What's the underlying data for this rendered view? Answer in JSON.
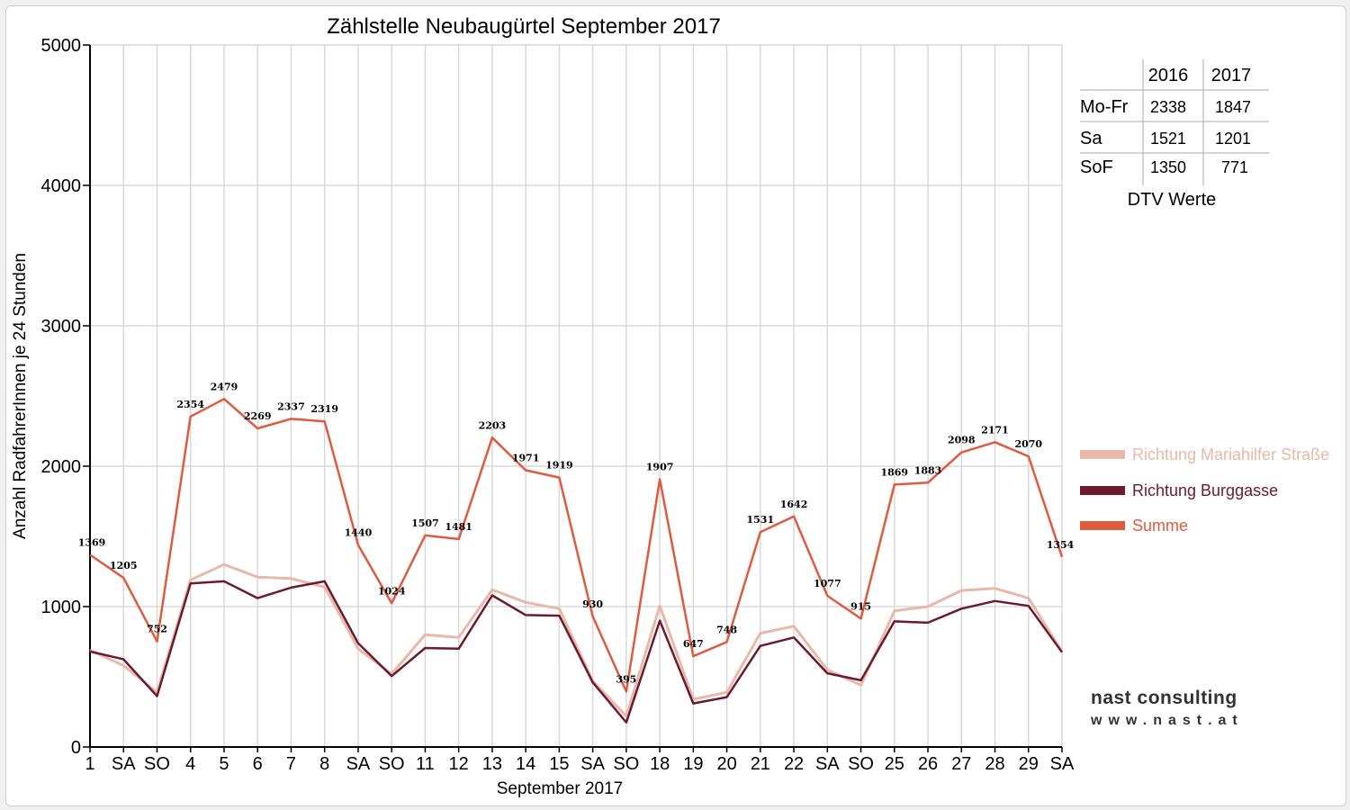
{
  "chart_data": {
    "type": "line",
    "title": "Zählstelle Neubaugürtel September 2017",
    "xlabel": "September 2017",
    "ylabel": "Anzahl RadfahrerInnen je 24 Stunden",
    "ylim": [
      0,
      5000
    ],
    "yticks": [
      "0",
      "1000",
      "2000",
      "3000",
      "4000",
      "5000"
    ],
    "grid": true,
    "legend_position": "right",
    "categories": [
      "1",
      "SA",
      "SO",
      "4",
      "5",
      "6",
      "7",
      "8",
      "SA",
      "SO",
      "11",
      "12",
      "13",
      "14",
      "15",
      "SA",
      "SO",
      "18",
      "19",
      "20",
      "21",
      "22",
      "SA",
      "SO",
      "25",
      "26",
      "27",
      "28",
      "29",
      "SA"
    ],
    "weekend_color": "#ff0000",
    "series": [
      {
        "name": "Richtung Mariahilfer Straße",
        "color": "#e8b8a8",
        "values": [
          690,
          580,
          390,
          1190,
          1300,
          1210,
          1200,
          1140,
          700,
          520,
          800,
          780,
          1120,
          1030,
          985,
          470,
          220,
          1005,
          340,
          390,
          810,
          860,
          550,
          440,
          970,
          1000,
          1115,
          1130,
          1060,
          680
        ]
      },
      {
        "name": "Richtung Burggasse",
        "color": "#6b1a30",
        "values": [
          680,
          625,
          362,
          1165,
          1180,
          1060,
          1135,
          1180,
          740,
          505,
          705,
          700,
          1080,
          940,
          935,
          460,
          175,
          900,
          310,
          355,
          720,
          780,
          525,
          475,
          895,
          885,
          985,
          1040,
          1005,
          675
        ]
      },
      {
        "name": "Summe",
        "color": "#e05a40",
        "values": [
          1369,
          1205,
          752,
          2354,
          2479,
          2269,
          2337,
          2319,
          1440,
          1024,
          1507,
          1481,
          2203,
          1971,
          1919,
          930,
          395,
          1907,
          647,
          748,
          1531,
          1642,
          1077,
          915,
          1869,
          1883,
          2098,
          2171,
          2070,
          1354
        ]
      }
    ],
    "data_labels": [
      "1369",
      "1205",
      "752",
      "2354",
      "2479",
      "2269",
      "2337",
      "2319",
      "1440",
      "1024",
      "1507",
      "1481",
      "2203",
      "1971",
      "1919",
      "930",
      "395",
      "1907",
      "647",
      "748",
      "1531",
      "1642",
      "1077",
      "915",
      "1869",
      "1883",
      "2098",
      "2171",
      "2070",
      "1354"
    ]
  },
  "dtv_table": {
    "caption": "DTV Werte",
    "years": [
      "2016",
      "2017"
    ],
    "rows": [
      {
        "label": "Mo-Fr",
        "v2016": "2338",
        "v2017": "1847"
      },
      {
        "label": "Sa",
        "v2016": "1521",
        "v2017": "1201"
      },
      {
        "label": "SoF",
        "v2016": "1350",
        "v2017": "771"
      }
    ]
  },
  "logo": {
    "line1": "nast consulting",
    "line2": "www.nast.at"
  }
}
